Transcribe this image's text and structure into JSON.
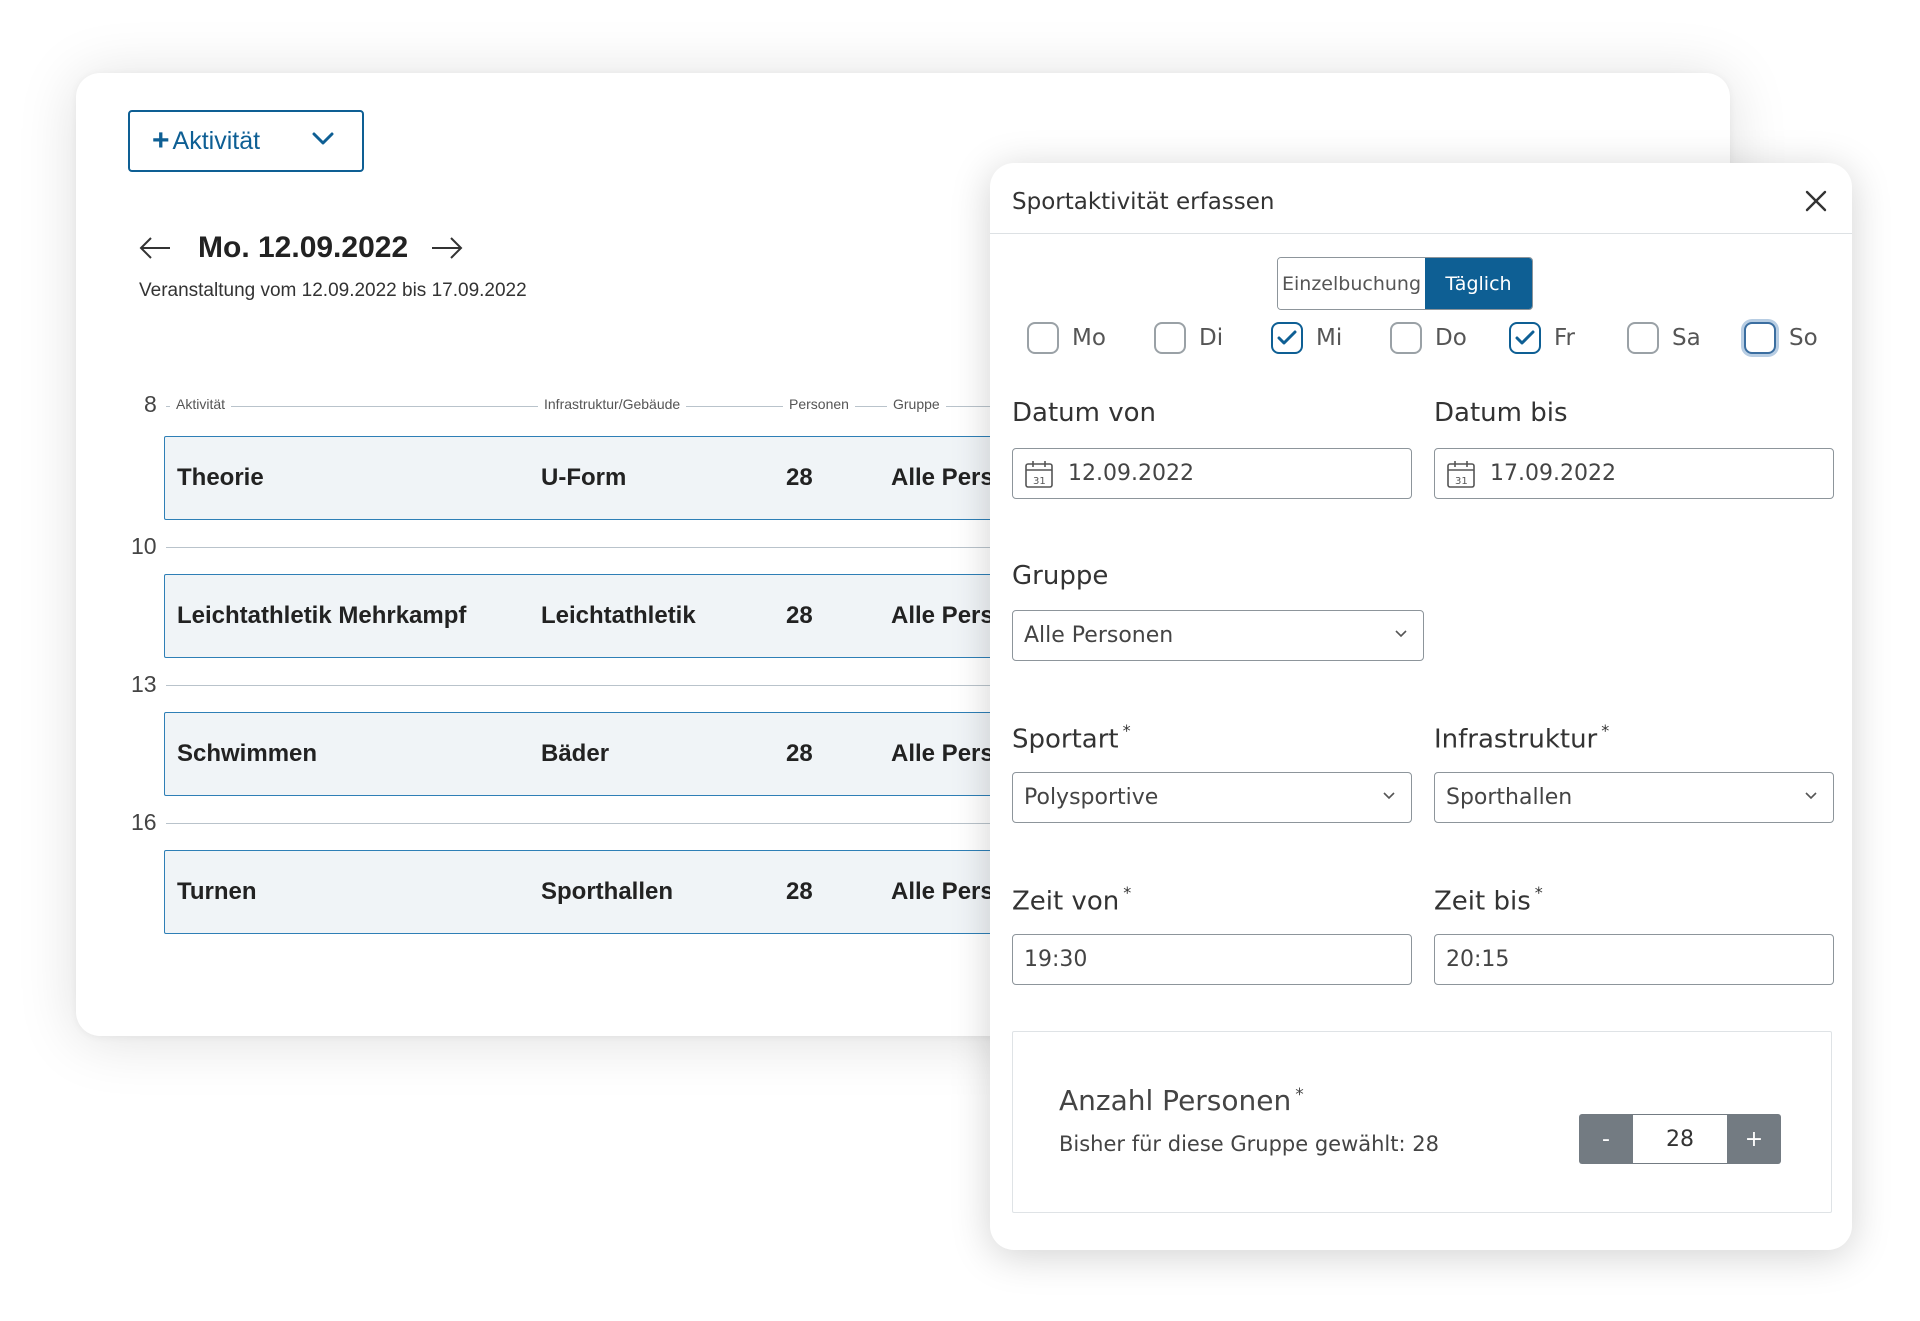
{
  "schedule": {
    "add_button_label": "Aktivität",
    "add_button_icon": "plus-icon",
    "date_title": "Mo. 12.09.2022",
    "date_subtitle": "Veranstaltung vom 12.09.2022 bis 17.09.2022",
    "columns": [
      "Aktivität",
      "Infrastruktur/Gebäude",
      "Personen",
      "Gruppe"
    ],
    "hours": [
      "8",
      "10",
      "13",
      "16"
    ],
    "events": [
      {
        "activity": "Theorie",
        "infrastructure": "U-Form",
        "persons": "28",
        "group": "Alle Personen"
      },
      {
        "activity": "Leichtathletik Mehrkampf",
        "infrastructure": "Leichtathletik",
        "persons": "28",
        "group": "Alle Personen"
      },
      {
        "activity": "Schwimmen",
        "infrastructure": "Bäder",
        "persons": "28",
        "group": "Alle Personen"
      },
      {
        "activity": "Turnen",
        "infrastructure": "Sporthallen",
        "persons": "28",
        "group": "Alle Personen"
      }
    ]
  },
  "modal": {
    "title": "Sportaktivität erfassen",
    "mode_tabs": [
      {
        "label": "Einzelbuchung",
        "selected": false
      },
      {
        "label": "Täglich",
        "selected": true
      }
    ],
    "days": [
      {
        "label": "Mo",
        "checked": false
      },
      {
        "label": "Di",
        "checked": false
      },
      {
        "label": "Mi",
        "checked": true
      },
      {
        "label": "Do",
        "checked": false
      },
      {
        "label": "Fr",
        "checked": true
      },
      {
        "label": "Sa",
        "checked": false
      },
      {
        "label": "So",
        "checked": false,
        "focused": true
      }
    ],
    "date_from": {
      "label": "Datum von",
      "value": "12.09.2022"
    },
    "date_to": {
      "label": "Datum bis",
      "value": "17.09.2022"
    },
    "group": {
      "label": "Gruppe",
      "value": "Alle Personen"
    },
    "sport": {
      "label": "Sportart",
      "required": "*",
      "value": "Polysportive"
    },
    "infrastructure": {
      "label": "Infrastruktur",
      "required": "*",
      "value": "Sporthallen"
    },
    "time_from": {
      "label": "Zeit von",
      "required": "*",
      "value": "19:30"
    },
    "time_to": {
      "label": "Zeit bis",
      "required": "*",
      "value": "20:15"
    },
    "persons": {
      "label": "Anzahl Personen",
      "required": "*",
      "hint": "Bisher für diese Gruppe gewählt: 28",
      "value": "28",
      "minus_label": "-",
      "plus_label": "+"
    }
  },
  "colors": {
    "accent": "#0e5f94",
    "event_fill": "#f0f4f7",
    "event_border": "#2e7fb6",
    "stepper_gray": "#737b82"
  }
}
